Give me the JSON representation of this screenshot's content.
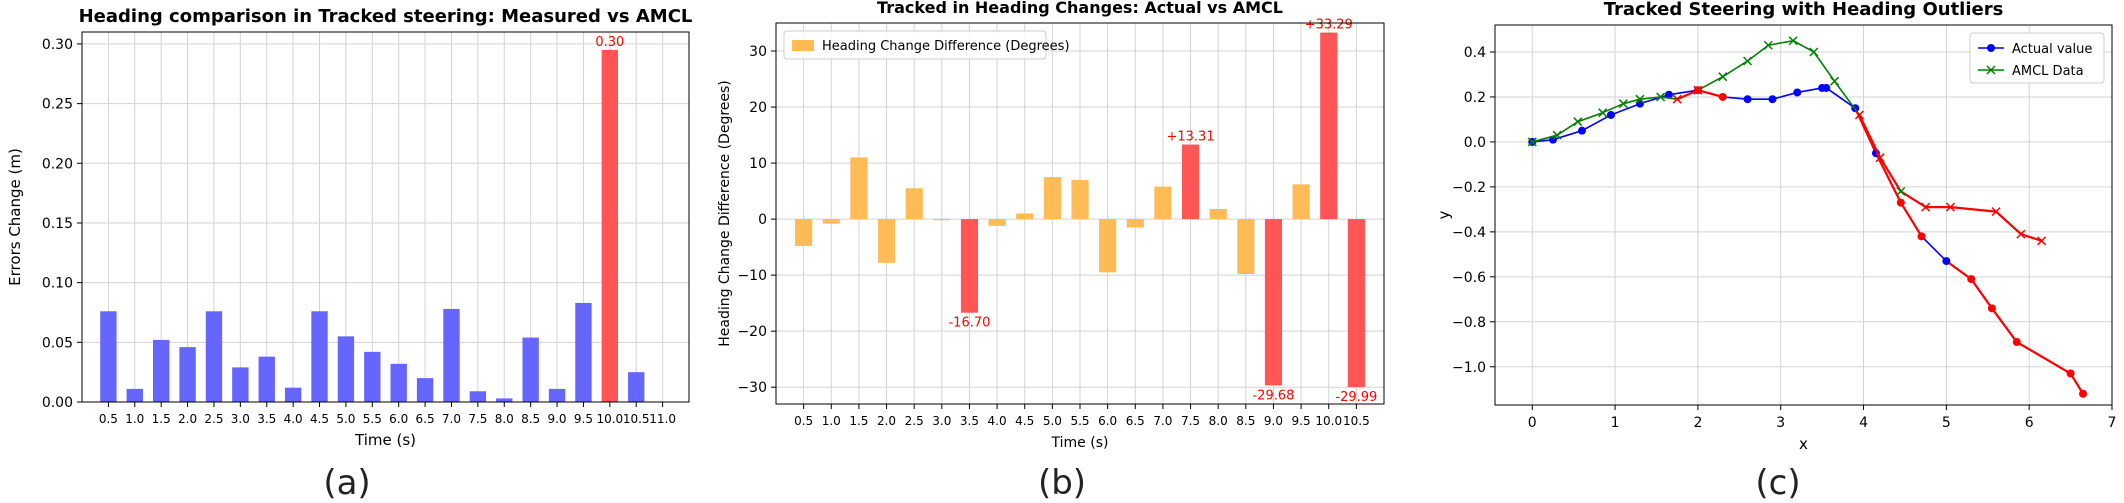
{
  "panels": {
    "a": "(a)",
    "b": "(b)",
    "c": "(c)"
  },
  "chart_data": [
    {
      "type": "bar",
      "title": "Heading comparison in Tracked steering: Measured vs AMCL",
      "xlabel": "Time (s)",
      "ylabel": "Errors Change (m)",
      "ylim": [
        0,
        0.31
      ],
      "yticks": [
        0.0,
        0.05,
        0.1,
        0.15,
        0.2,
        0.25,
        0.3
      ],
      "ytick_labels": [
        "0.00",
        "0.05",
        "0.10",
        "0.15",
        "0.20",
        "0.25",
        "0.30"
      ],
      "grid": true,
      "categories": [
        "0.5",
        "1.0",
        "1.5",
        "2.0",
        "2.5",
        "3.0",
        "3.5",
        "4.0",
        "4.5",
        "5.0",
        "5.5",
        "6.0",
        "6.5",
        "7.0",
        "7.5",
        "8.0",
        "8.5",
        "9.0",
        "9.5",
        "10.0",
        "10.5",
        "11.0"
      ],
      "values": [
        0.076,
        0.011,
        0.052,
        0.046,
        0.076,
        0.029,
        0.038,
        0.012,
        0.076,
        0.055,
        0.042,
        0.032,
        0.02,
        0.078,
        0.009,
        0.003,
        0.054,
        0.011,
        0.083,
        0.295,
        0.025,
        null
      ],
      "highlight": [
        19
      ],
      "annotations": [
        {
          "category": "10.0",
          "text": "0.30"
        }
      ],
      "colors": {
        "normal": "#6666ff",
        "highlight": "#ff5555",
        "label": "#ff0000"
      }
    },
    {
      "type": "bar",
      "title": "Tracked in Heading Changes: Actual vs AMCL",
      "xlabel": "Time (s)",
      "ylabel": "Heading Change Difference (Degrees)",
      "ylim": [
        -33,
        35
      ],
      "yticks": [
        -30,
        -20,
        -10,
        0,
        10,
        20,
        30
      ],
      "ytick_labels": [
        "−30",
        "−20",
        "−10",
        "0",
        "10",
        "20",
        "30"
      ],
      "grid": true,
      "legend": {
        "label": "Heading Change Difference (Degrees)",
        "position": "top-left"
      },
      "categories": [
        "0.5",
        "1.0",
        "1.5",
        "2.0",
        "2.5",
        "3.0",
        "3.5",
        "4.0",
        "4.5",
        "5.0",
        "5.5",
        "6.0",
        "6.5",
        "7.0",
        "7.5",
        "8.0",
        "8.5",
        "9.0",
        "9.5",
        "10.0",
        "10.5"
      ],
      "values": [
        -4.8,
        -0.8,
        11.0,
        -7.8,
        5.5,
        -0.2,
        -16.7,
        -1.2,
        1.0,
        7.5,
        7.0,
        -9.5,
        -1.5,
        5.8,
        13.31,
        1.8,
        -9.8,
        -29.68,
        6.2,
        33.29,
        -29.99
      ],
      "highlight": [
        6,
        14,
        17,
        19,
        20
      ],
      "annotations": [
        {
          "category": "3.5",
          "text": "-16.70",
          "pos": "below"
        },
        {
          "category": "7.5",
          "text": "+13.31",
          "pos": "above"
        },
        {
          "category": "9.0",
          "text": "-29.68",
          "pos": "below"
        },
        {
          "category": "10.0",
          "text": "+33.29",
          "pos": "above"
        },
        {
          "category": "10.5",
          "text": "-29.99",
          "pos": "below"
        }
      ],
      "colors": {
        "normal": "#ffbb55",
        "highlight": "#ff5555",
        "label": "#ff0000"
      }
    },
    {
      "type": "line",
      "title": "Tracked Steering with Heading Outliers",
      "xlabel": "x",
      "ylabel": "y",
      "xlim": [
        -0.45,
        7.0
      ],
      "ylim": [
        -1.17,
        0.52
      ],
      "xticks": [
        0,
        1,
        2,
        3,
        4,
        5,
        6,
        7
      ],
      "xtick_labels": [
        "0",
        "1",
        "2",
        "3",
        "4",
        "5",
        "6",
        "7"
      ],
      "yticks": [
        -1.0,
        -0.8,
        -0.6,
        -0.4,
        -0.2,
        0.0,
        0.2,
        0.4
      ],
      "ytick_labels": [
        "−1.0",
        "−0.8",
        "−0.6",
        "−0.4",
        "−0.2",
        "0.0",
        "0.2",
        "0.4"
      ],
      "grid": true,
      "legend": {
        "position": "top-right"
      },
      "outlier_color": "#ff0000",
      "series": [
        {
          "name": "Actual value",
          "color": "#0000ff",
          "marker": "circle",
          "x": [
            0.0,
            0.25,
            0.6,
            0.95,
            1.3,
            1.65,
            2.0,
            2.3,
            2.6,
            2.9,
            3.2,
            3.5,
            3.55,
            3.9,
            4.15,
            4.45,
            4.7,
            5.0,
            5.3,
            5.55,
            5.85,
            6.5,
            6.65
          ],
          "y": [
            0.0,
            0.01,
            0.05,
            0.12,
            0.17,
            0.21,
            0.23,
            0.2,
            0.19,
            0.19,
            0.22,
            0.24,
            0.24,
            0.15,
            -0.05,
            -0.27,
            -0.42,
            -0.53,
            -0.61,
            -0.74,
            -0.89,
            -1.03,
            -1.12
          ],
          "outlier_segments": [
            [
              6,
              7
            ],
            [
              13,
              14
            ],
            [
              14,
              15
            ],
            [
              15,
              16
            ],
            [
              17,
              18
            ],
            [
              18,
              19
            ],
            [
              19,
              20
            ],
            [
              20,
              21
            ],
            [
              21,
              22
            ]
          ],
          "outlier_points": [
            6,
            7,
            15,
            16,
            18,
            19,
            20,
            21,
            22
          ]
        },
        {
          "name": "AMCL Data",
          "color": "#008000",
          "marker": "x",
          "x": [
            0.0,
            0.3,
            0.55,
            0.85,
            1.1,
            1.3,
            1.55,
            1.75,
            2.0,
            2.3,
            2.6,
            2.85,
            3.15,
            3.4,
            3.65,
            3.95,
            4.2,
            4.45,
            4.75,
            5.05,
            5.6,
            5.9,
            6.15
          ],
          "y": [
            0.0,
            0.03,
            0.09,
            0.13,
            0.17,
            0.19,
            0.2,
            0.19,
            0.23,
            0.29,
            0.36,
            0.43,
            0.45,
            0.4,
            0.27,
            0.12,
            -0.07,
            -0.22,
            -0.29,
            -0.29,
            -0.31,
            -0.41,
            -0.44
          ],
          "outlier_segments": [
            [
              7,
              8
            ],
            [
              15,
              16
            ],
            [
              16,
              17
            ],
            [
              17,
              18
            ],
            [
              18,
              19
            ],
            [
              19,
              20
            ],
            [
              20,
              21
            ],
            [
              21,
              22
            ]
          ],
          "outlier_points": [
            7,
            8,
            15,
            16,
            18,
            19,
            20,
            21,
            22
          ]
        }
      ]
    }
  ]
}
